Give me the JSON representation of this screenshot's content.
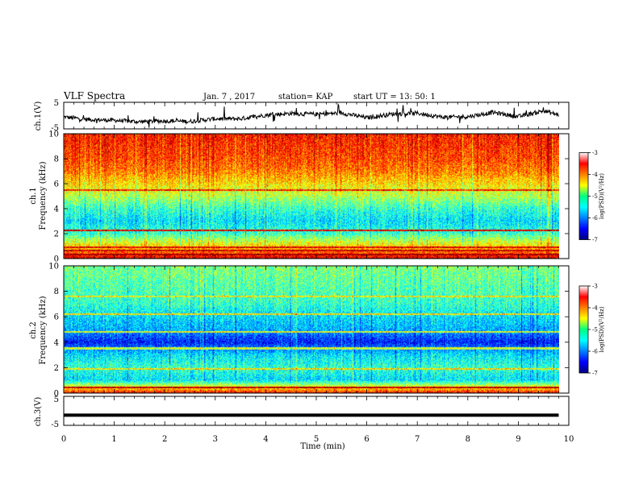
{
  "header": {
    "title": "VLF Spectra",
    "date": "Jan. 7 , 2017",
    "station": "station= KAP",
    "start": "start UT = 13: 50: 1"
  },
  "chart_data": [
    {
      "type": "line",
      "panel": "ch1-waveform",
      "ylabel": "ch.1(V)",
      "ylim": [
        -5,
        5
      ],
      "yticks": [
        "5",
        "-5"
      ],
      "xlim": [
        0,
        10
      ],
      "series": [
        {
          "x": [
            0,
            0.5,
            1,
            1.5,
            2,
            2.5,
            3,
            3.5,
            4,
            4.5,
            5,
            5.5,
            6,
            6.5,
            7,
            7.5,
            8,
            8.5,
            9,
            9.5,
            9.8
          ],
          "values": [
            -0.5,
            -1.5,
            -1.8,
            -2.3,
            -2.0,
            -2.2,
            -1.2,
            -1.2,
            0.2,
            0.8,
            0.5,
            1.0,
            -0.8,
            0.6,
            0.9,
            -0.6,
            -0.4,
            1.2,
            -0.4,
            1.8,
            0.2
          ]
        }
      ],
      "color": "#000000"
    },
    {
      "type": "heatmap",
      "panel": "ch1-spectrogram",
      "ylabel": "ch.1\nFrequency (kHz)",
      "ylim": [
        0,
        10
      ],
      "yticks": [
        "0",
        "2",
        "4",
        "6",
        "8",
        "10"
      ],
      "xlim": [
        0,
        9.8
      ],
      "colorbar": {
        "label": "log(PSD)(V²/Hz)",
        "ticks": [
          "-3",
          "-4",
          "-5",
          "-6",
          "-7"
        ],
        "range": [
          -7,
          -3
        ]
      },
      "profile_freq_khz": [
        0,
        1,
        2,
        3,
        4,
        5,
        6,
        7,
        8,
        9,
        10
      ],
      "profile_log_psd": [
        -3.4,
        -4.4,
        -5.3,
        -5.6,
        -5.3,
        -4.8,
        -4.4,
        -4.0,
        -3.8,
        -3.7,
        -3.6
      ],
      "lines_khz": [
        {
          "f": 0.3,
          "v": -3.1
        },
        {
          "f": 0.6,
          "v": -3.3
        },
        {
          "f": 0.9,
          "v": -3.4
        },
        {
          "f": 2.25,
          "v": -3.4
        },
        {
          "f": 5.5,
          "v": -3.6
        }
      ]
    },
    {
      "type": "heatmap",
      "panel": "ch2-spectrogram",
      "ylabel": "ch.2\nFrequency (kHz)",
      "ylim": [
        0,
        10
      ],
      "yticks": [
        "0",
        "2",
        "4",
        "6",
        "8",
        "10"
      ],
      "xlim": [
        0,
        9.8
      ],
      "colorbar": {
        "label": "log(PSD)(V²/Hz)",
        "ticks": [
          "-3",
          "-4",
          "-5",
          "-6",
          "-7"
        ],
        "range": [
          -7,
          -3
        ]
      },
      "profile_freq_khz": [
        0,
        1,
        2,
        3,
        4,
        5,
        6,
        7,
        8,
        9,
        10
      ],
      "profile_log_psd": [
        -3.6,
        -5.6,
        -5.3,
        -5.6,
        -6.4,
        -5.8,
        -5.6,
        -5.3,
        -5.2,
        -5.1,
        -5.0
      ],
      "lines_khz": [
        {
          "f": 0.4,
          "v": -3.2
        },
        {
          "f": 1.9,
          "v": -4.4
        },
        {
          "f": 3.5,
          "v": -4.7
        },
        {
          "f": 4.8,
          "v": -4.6
        },
        {
          "f": 6.2,
          "v": -4.4
        },
        {
          "f": 7.6,
          "v": -4.5
        }
      ]
    },
    {
      "type": "line",
      "panel": "ch3-waveform",
      "ylabel": "ch.3(V)",
      "ylim": [
        -5,
        5
      ],
      "yticks": [
        "5",
        "-5"
      ],
      "xlim": [
        0,
        10
      ],
      "xlabel": "Time (min)",
      "xticks": [
        "0",
        "1",
        "2",
        "3",
        "4",
        "5",
        "6",
        "7",
        "8",
        "9",
        "10"
      ],
      "series": [
        {
          "x": [
            0,
            9.8
          ],
          "values": [
            -1.5,
            -1.5
          ]
        }
      ],
      "color": "#000000"
    }
  ]
}
